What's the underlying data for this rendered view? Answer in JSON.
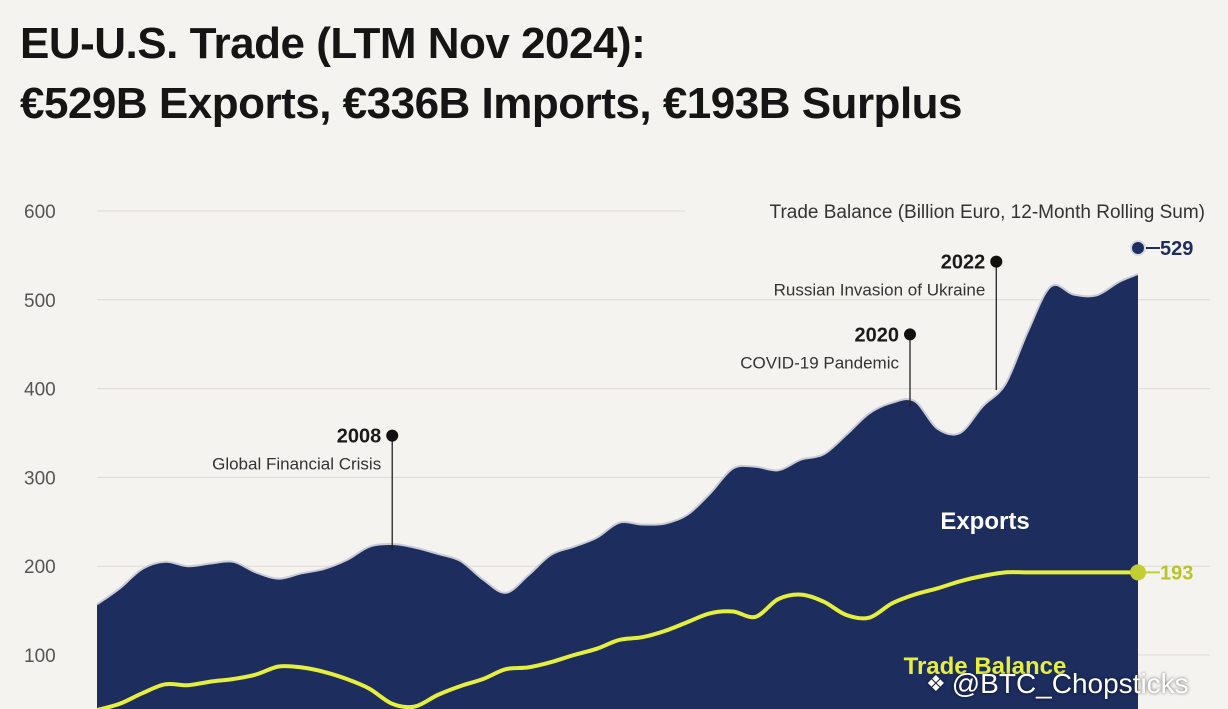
{
  "title_line1": "EU-U.S. Trade (LTM Nov 2024):",
  "title_line2": "€529B Exports, €336B Imports, €193B Surplus",
  "chart_data": {
    "type": "area",
    "title": "EU-U.S. Trade (LTM Nov 2024): €529B Exports, €336B Imports, €193B Surplus",
    "subtitle": "Trade Balance (Billion Euro, 12-Month Rolling Sum)",
    "x": [
      2002.0,
      2002.5,
      2003.0,
      2003.5,
      2004.0,
      2004.5,
      2005.0,
      2005.5,
      2006.0,
      2006.5,
      2007.0,
      2007.5,
      2008.0,
      2008.5,
      2009.0,
      2009.5,
      2010.0,
      2010.5,
      2011.0,
      2011.5,
      2012.0,
      2012.5,
      2013.0,
      2013.5,
      2014.0,
      2014.5,
      2015.0,
      2015.5,
      2016.0,
      2016.5,
      2017.0,
      2017.5,
      2018.0,
      2018.5,
      2019.0,
      2019.5,
      2020.0,
      2020.5,
      2021.0,
      2021.5,
      2022.0,
      2022.5,
      2023.0,
      2023.5,
      2024.0,
      2024.5,
      2024.92
    ],
    "series": [
      {
        "name": "Exports",
        "values": [
          157,
          175,
          197,
          205,
          200,
          203,
          205,
          193,
          186,
          192,
          197,
          207,
          222,
          225,
          221,
          214,
          206,
          185,
          170,
          190,
          213,
          222,
          232,
          249,
          247,
          248,
          258,
          282,
          310,
          312,
          308,
          320,
          326,
          348,
          372,
          384,
          386,
          355,
          350,
          380,
          405,
          465,
          515,
          506,
          505,
          520,
          529
        ]
      },
      {
        "name": "Trade Balance",
        "values": [
          38,
          45,
          57,
          67,
          66,
          70,
          73,
          78,
          87,
          86,
          81,
          73,
          62,
          45,
          42,
          55,
          65,
          73,
          84,
          86,
          92,
          100,
          107,
          117,
          120,
          127,
          137,
          147,
          149,
          143,
          163,
          168,
          160,
          145,
          142,
          158,
          168,
          175,
          183,
          189,
          193,
          193,
          193,
          193,
          193,
          193,
          193
        ]
      }
    ],
    "y_ticks": [
      "600",
      "500",
      "400",
      "300",
      "200",
      "100"
    ],
    "ylim": [
      0,
      600
    ],
    "grid": true,
    "series_labels": [
      "Exports",
      "Trade Balance"
    ],
    "end_labels": [
      "529",
      "193"
    ],
    "annotations": [
      {
        "year": "2008",
        "text": "Global Financial Crisis",
        "x": 2008.5,
        "y": 347
      },
      {
        "year": "2020",
        "text": "COVID-19 Pandemic",
        "x": 2019.9,
        "y": 461
      },
      {
        "year": "2022",
        "text": "Russian Invasion of Ukraine",
        "x": 2021.8,
        "y": 543
      }
    ]
  },
  "watermark": "@BTC_Chopsticks",
  "colors": {
    "exports_fill": "#1c2d5e",
    "balance_line": "#e5ef3c",
    "background": "#f5f3ef",
    "grid": "#dedbd4"
  }
}
